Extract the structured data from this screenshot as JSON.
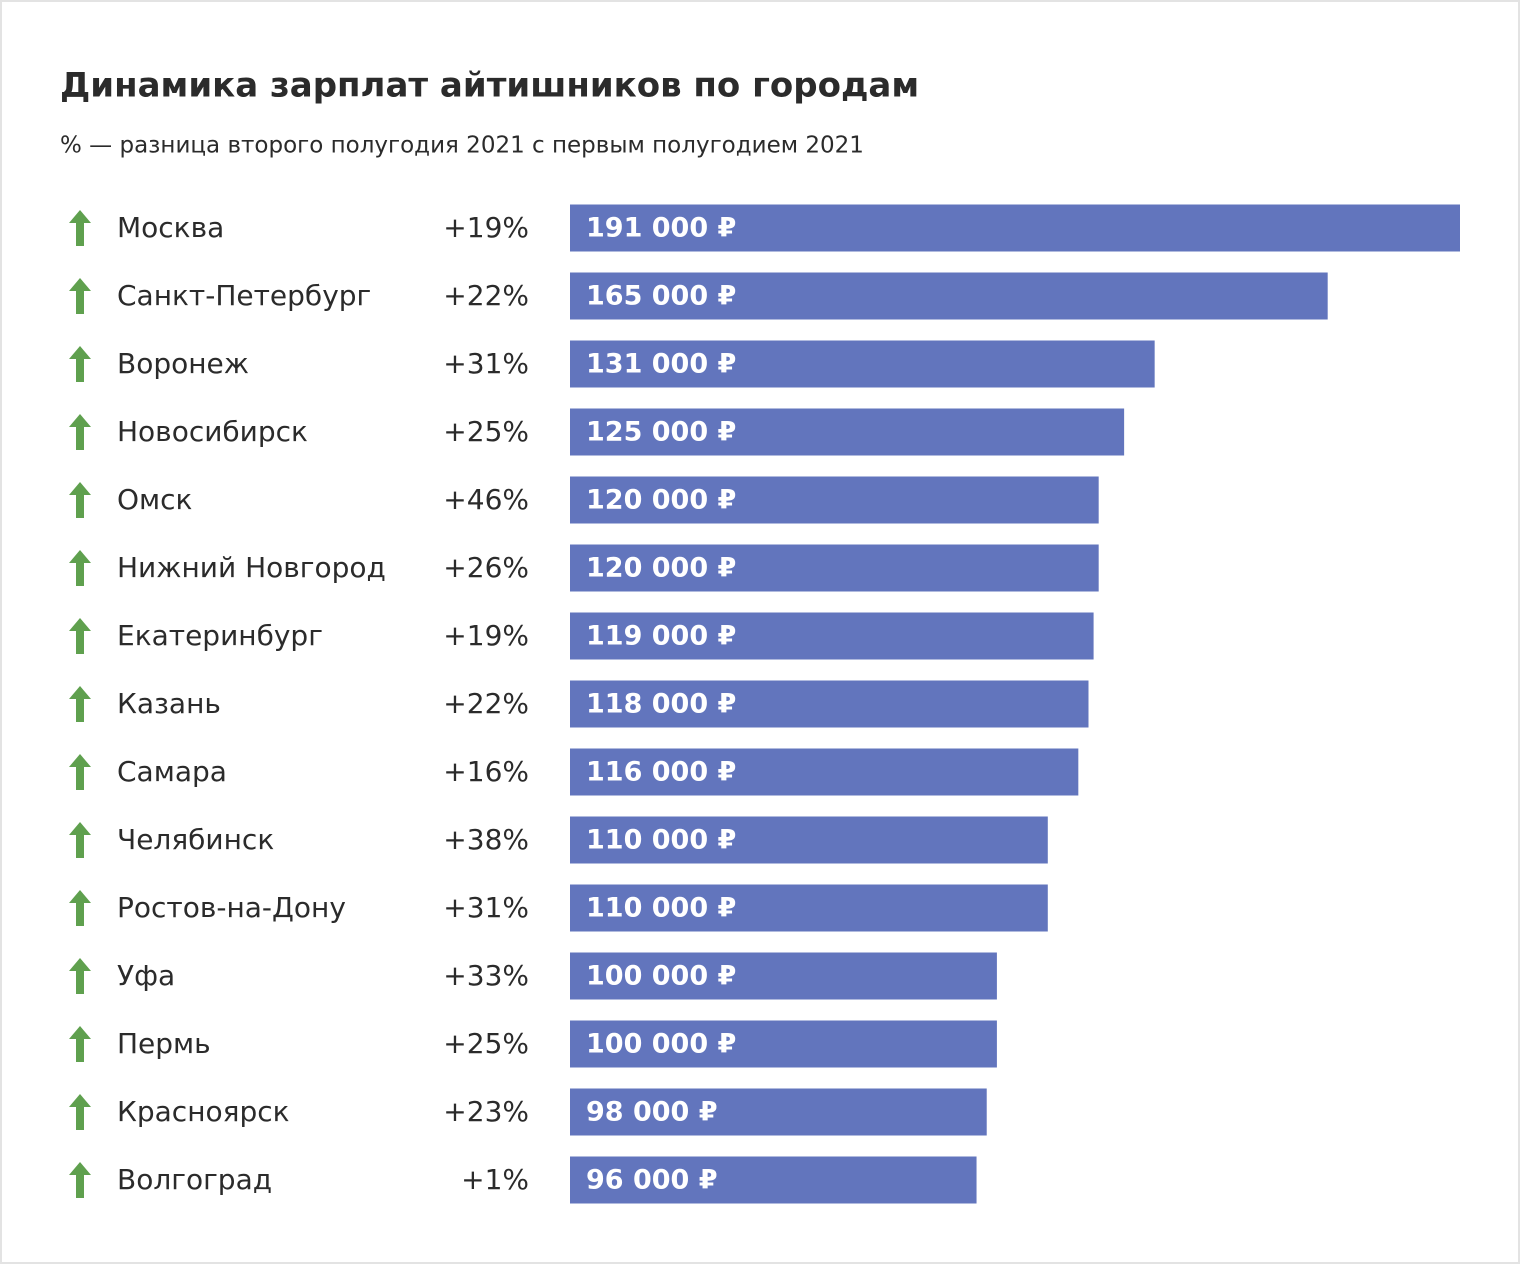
{
  "chart_data": {
    "type": "bar",
    "orientation": "horizontal",
    "title": "Динамика зарплат айтишников по городам",
    "subtitle": "% — разница второго полугодия 2021 с первым полугодием 2021",
    "categories": [
      "Москва",
      "Санкт-Петербург",
      "Воронеж",
      "Новосибирск",
      "Омск",
      "Нижний Новгород",
      "Екатеринбург",
      "Казань",
      "Самара",
      "Челябинск",
      "Ростов-на-Дону",
      "Уфа",
      "Пермь",
      "Красноярск",
      "Волгоград"
    ],
    "values": [
      191000,
      165000,
      131000,
      125000,
      120000,
      120000,
      119000,
      118000,
      116000,
      110000,
      110000,
      100000,
      100000,
      98000,
      96000
    ],
    "value_labels": [
      "191 000 ₽",
      "165 000 ₽",
      "131 000 ₽",
      "125 000 ₽",
      "120 000 ₽",
      "120 000 ₽",
      "119 000 ₽",
      "118 000 ₽",
      "116 000 ₽",
      "110 000 ₽",
      "110 000 ₽",
      "100 000 ₽",
      "100 000 ₽",
      "98 000 ₽",
      "96 000 ₽"
    ],
    "changes": {
      "values": [
        19,
        22,
        31,
        25,
        46,
        26,
        19,
        22,
        16,
        38,
        31,
        33,
        25,
        23,
        1
      ],
      "value_labels": [
        "+19%",
        "+22%",
        "+31%",
        "+25%",
        "+46%",
        "+26%",
        "+19%",
        "+22%",
        "+16%",
        "+38%",
        "+31%",
        "+33%",
        "+25%",
        "+23%",
        "+1%"
      ]
    },
    "color": "#6275bd",
    "arrow_color": "#5fa04e"
  }
}
